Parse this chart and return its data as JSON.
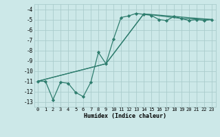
{
  "xlabel": "Humidex (Indice chaleur)",
  "ylabel": "",
  "bg_color": "#cce8e8",
  "grid_color": "#aacccc",
  "line_color": "#2e7d6e",
  "xlim": [
    -0.5,
    23.5
  ],
  "ylim": [
    -13.5,
    -3.5
  ],
  "xticks": [
    0,
    1,
    2,
    3,
    4,
    5,
    6,
    7,
    8,
    9,
    10,
    11,
    12,
    13,
    14,
    15,
    16,
    17,
    18,
    19,
    20,
    21,
    22,
    23
  ],
  "yticks": [
    -13,
    -12,
    -11,
    -10,
    -9,
    -8,
    -7,
    -6,
    -5,
    -4
  ],
  "series": [
    {
      "x": [
        0,
        1,
        2,
        3,
        4,
        5,
        6,
        7,
        8,
        9,
        10,
        11,
        12,
        13,
        14,
        15,
        16,
        17,
        18,
        19,
        20,
        21,
        22,
        23
      ],
      "y": [
        -11.0,
        -11.0,
        -12.8,
        -11.1,
        -11.2,
        -12.1,
        -12.5,
        -11.1,
        -8.2,
        -9.3,
        -6.9,
        -4.8,
        -4.65,
        -4.4,
        -4.5,
        -4.6,
        -5.0,
        -5.1,
        -4.7,
        -4.9,
        -5.1,
        -5.0,
        -5.1,
        -5.0
      ],
      "markers": true
    },
    {
      "x": [
        0,
        9,
        14,
        23
      ],
      "y": [
        -11.0,
        -9.3,
        -4.45,
        -5.0
      ],
      "markers": false
    },
    {
      "x": [
        0,
        9,
        14,
        19,
        23
      ],
      "y": [
        -11.0,
        -9.3,
        -4.45,
        -4.9,
        -5.0
      ],
      "markers": false
    }
  ]
}
